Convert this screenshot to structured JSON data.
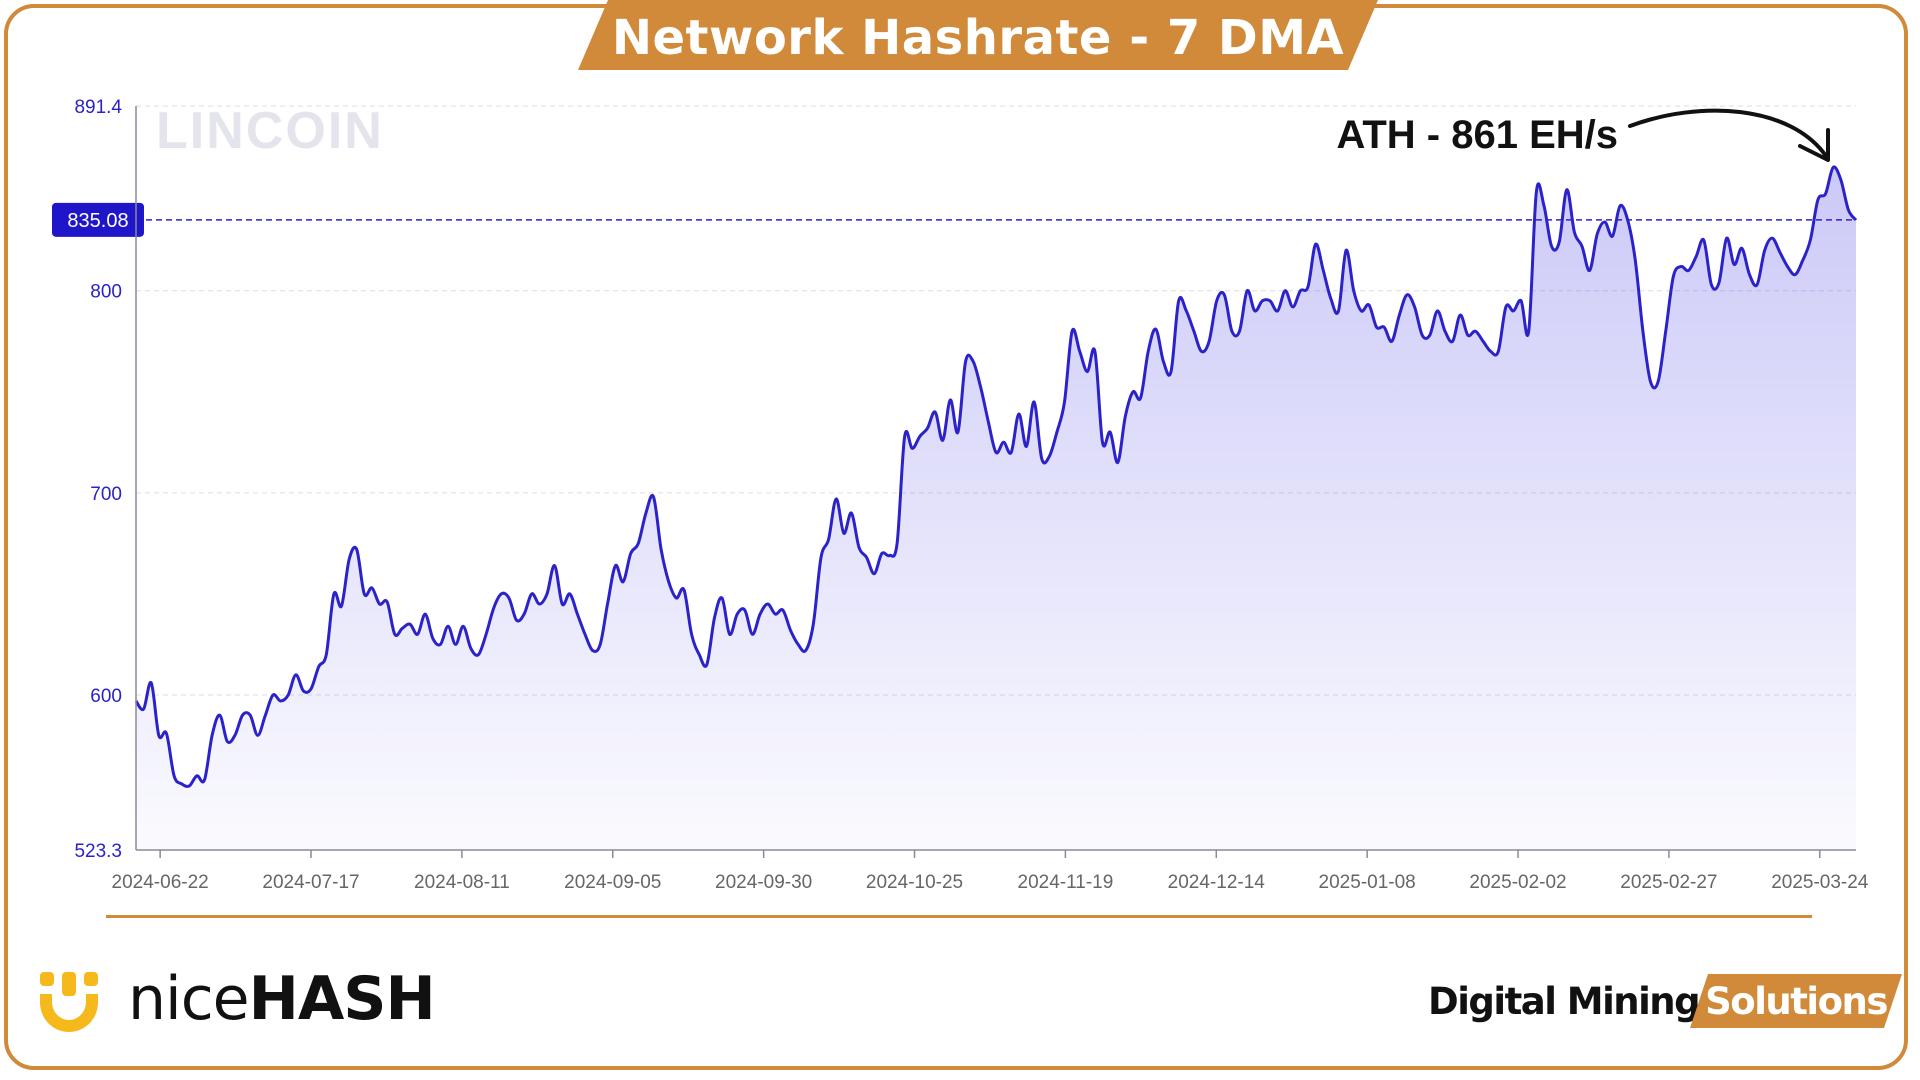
{
  "title": "Network Hashrate - 7 DMA",
  "colors": {
    "frame": "#d08a3a",
    "banner": "#d08a3a",
    "line": "#2b22c9",
    "area": "#6d66e8",
    "current_label_bg": "#1e16c8",
    "tick_text": "#2b22c9",
    "date_text": "#666666"
  },
  "watermark": "LINCOIN",
  "annotation": {
    "text": "ATH - 861 EH/s",
    "arrow_icon": "curved-arrow-icon"
  },
  "current_value_label": "835.08",
  "branding": {
    "nicehash_icon": "nicehash-smile-icon",
    "nicehash_word_a": "nice",
    "nicehash_word_b": "HASH",
    "dms_word_a": "Digital Mining",
    "dms_word_b": "Solutions"
  },
  "chart_data": {
    "type": "area",
    "title": "Network Hashrate - 7 DMA",
    "xlabel": "",
    "ylabel": "",
    "ylim": [
      523.3,
      891.4
    ],
    "y_ticks": [
      "891.4",
      "800",
      "700",
      "600",
      "523.3"
    ],
    "x_ticks": [
      "2024-06-22",
      "2024-07-17",
      "2024-08-11",
      "2024-09-05",
      "2024-09-30",
      "2024-10-25",
      "2024-11-19",
      "2024-12-14",
      "2025-01-08",
      "2025-02-02",
      "2025-02-27",
      "2025-03-24"
    ],
    "x_start": "2024-06-18",
    "x_end": "2025-03-30",
    "reference_line": 835.08,
    "grid": true,
    "series": [
      {
        "values": [
          597,
          593,
          606,
          580,
          581,
          560,
          556,
          555,
          560,
          558,
          580,
          590,
          577,
          580,
          590,
          590,
          580,
          590,
          600,
          597,
          600,
          610,
          602,
          603,
          614,
          620,
          650,
          644,
          667,
          672,
          650,
          653,
          645,
          646,
          630,
          633,
          635,
          630,
          640,
          628,
          625,
          634,
          625,
          634,
          623,
          620,
          630,
          643,
          650,
          648,
          637,
          640,
          650,
          645,
          650,
          664,
          645,
          650,
          640,
          630,
          622,
          625,
          646,
          664,
          656,
          670,
          675,
          690,
          698,
          672,
          656,
          648,
          652,
          630,
          620,
          615,
          638,
          648,
          630,
          640,
          642,
          630,
          640,
          645,
          640,
          642,
          632,
          625,
          622,
          635,
          668,
          677,
          697,
          680,
          690,
          673,
          668,
          660,
          670,
          669,
          675,
          728,
          722,
          728,
          732,
          740,
          726,
          746,
          730,
          765,
          765,
          752,
          735,
          720,
          725,
          720,
          739,
          723,
          745,
          717,
          718,
          730,
          745,
          780,
          770,
          760,
          770,
          725,
          730,
          715,
          738,
          750,
          747,
          770,
          781,
          765,
          760,
          795,
          790,
          780,
          770,
          775,
          795,
          798,
          780,
          780,
          800,
          790,
          795,
          795,
          790,
          800,
          792,
          800,
          802,
          823,
          810,
          796,
          790,
          820,
          800,
          790,
          793,
          782,
          782,
          775,
          788,
          798,
          792,
          778,
          778,
          790,
          780,
          775,
          788,
          778,
          780,
          775,
          770,
          770,
          792,
          790,
          795,
          780,
          849,
          842,
          822,
          824,
          850,
          829,
          822,
          810,
          828,
          834,
          827,
          842,
          835,
          815,
          780,
          755,
          755,
          780,
          807,
          812,
          810,
          817,
          825,
          803,
          804,
          826,
          813,
          821,
          808,
          803,
          820,
          826,
          819,
          812,
          808,
          815,
          825,
          845,
          848,
          861,
          855,
          840,
          835
        ]
      }
    ]
  }
}
